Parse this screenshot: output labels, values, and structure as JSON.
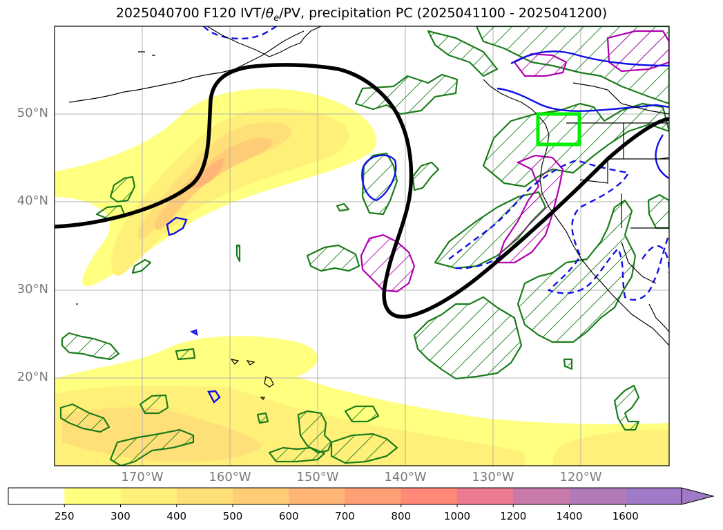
{
  "title_prefix": "2025040700 F120 IVT/",
  "title_theta": "θ",
  "title_sub": "e",
  "title_suffix": "/PV, precipitation PC (2025041100 - 2025041200)",
  "map": {
    "lat_labels": [
      "50°N",
      "40°N",
      "30°N",
      "20°N"
    ],
    "lon_labels": [
      "170°W",
      "160°W",
      "150°W",
      "140°W",
      "130°W",
      "120°W"
    ],
    "colors": {
      "frame": "#000000",
      "grid": "#b0b0b0",
      "coast": "#000000",
      "pv_contour": "#000000",
      "precip": "#1b7c1b",
      "theta_e_solid": "#1010e6",
      "theta_e_dashed": "#1010e6",
      "magenta": "#b000b0",
      "box": "#00ee00"
    }
  },
  "colorbar": {
    "ticks": [
      "250",
      "300",
      "400",
      "500",
      "600",
      "700",
      "800",
      "1000",
      "1200",
      "1400",
      "1600"
    ],
    "colors": [
      "#ffffff",
      "#ffff80",
      "#fff07a",
      "#ffdf78",
      "#ffcd76",
      "#ffb575",
      "#ff9f75",
      "#ff8878",
      "#ec7a90",
      "#c87aa8",
      "#b27ab8",
      "#a07ac6"
    ]
  }
}
